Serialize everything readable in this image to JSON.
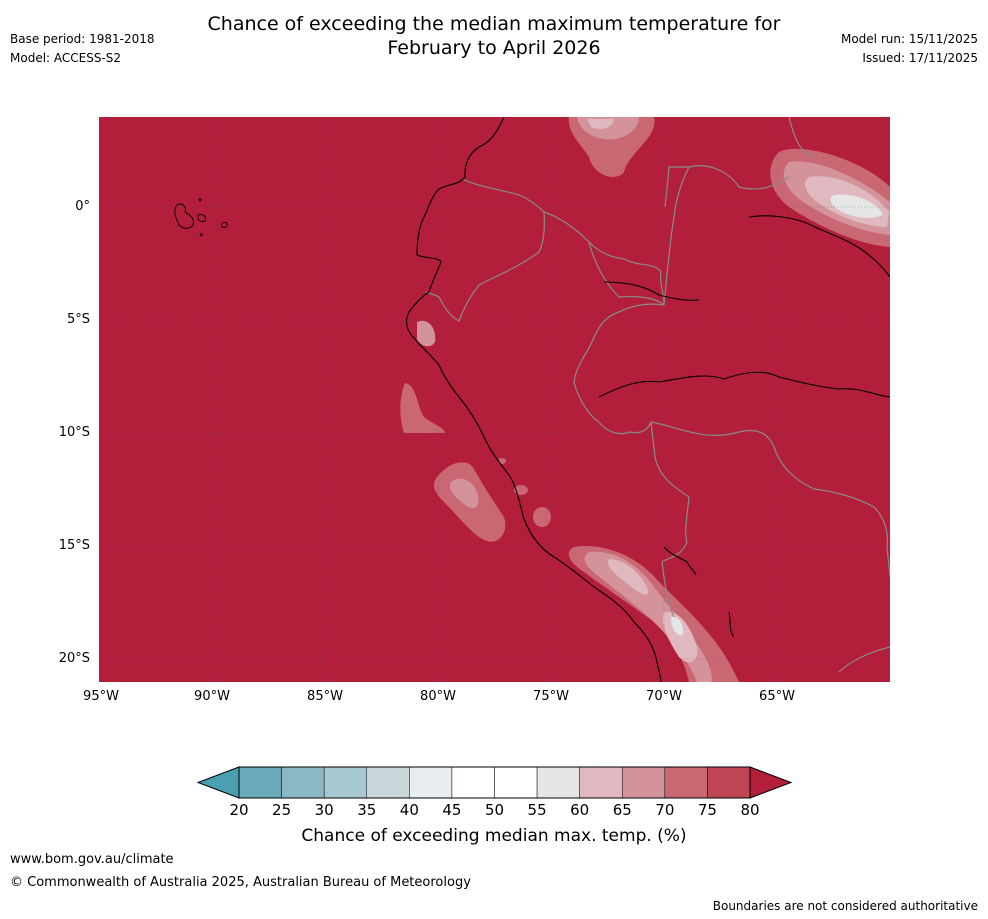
{
  "header": {
    "title_line1": "Chance of exceeding the median maximum temperature for",
    "title_line2": "February to April 2026",
    "base_period": "Base period: 1981-2018",
    "model": "Model: ACCESS-S2",
    "model_run": "Model run: 15/11/2025",
    "issued": "Issued: 17/11/2025"
  },
  "map": {
    "background_color": "#b31e3a",
    "lat_labels": [
      "0°",
      "5°S",
      "10°S",
      "15°S",
      "20°S"
    ],
    "lon_labels": [
      "95°W",
      "90°W",
      "85°W",
      "80°W",
      "75°W",
      "70°W",
      "65°W"
    ]
  },
  "colorbar": {
    "ticks": [
      "20",
      "25",
      "30",
      "35",
      "40",
      "45",
      "50",
      "55",
      "60",
      "65",
      "70",
      "75",
      "80"
    ],
    "colors": [
      "#68aab8",
      "#8bb8c4",
      "#a8c8cf",
      "#c7d7dc",
      "#e8eef0",
      "#ffffff",
      "#ffffff",
      "#e6e6e6",
      "#e0b8bf",
      "#d4929b",
      "#c96873",
      "#bf4654"
    ],
    "low_extend_color": "#4aa0b0",
    "high_extend_color": "#b31e3a",
    "label": "Chance of exceeding median max. temp. (%)"
  },
  "footer": {
    "url": "www.bom.gov.au/climate",
    "copyright": "© Commonwealth of Australia 2025, Australian Bureau of Meteorology",
    "disclaimer": "Boundaries are not considered authoritative"
  }
}
